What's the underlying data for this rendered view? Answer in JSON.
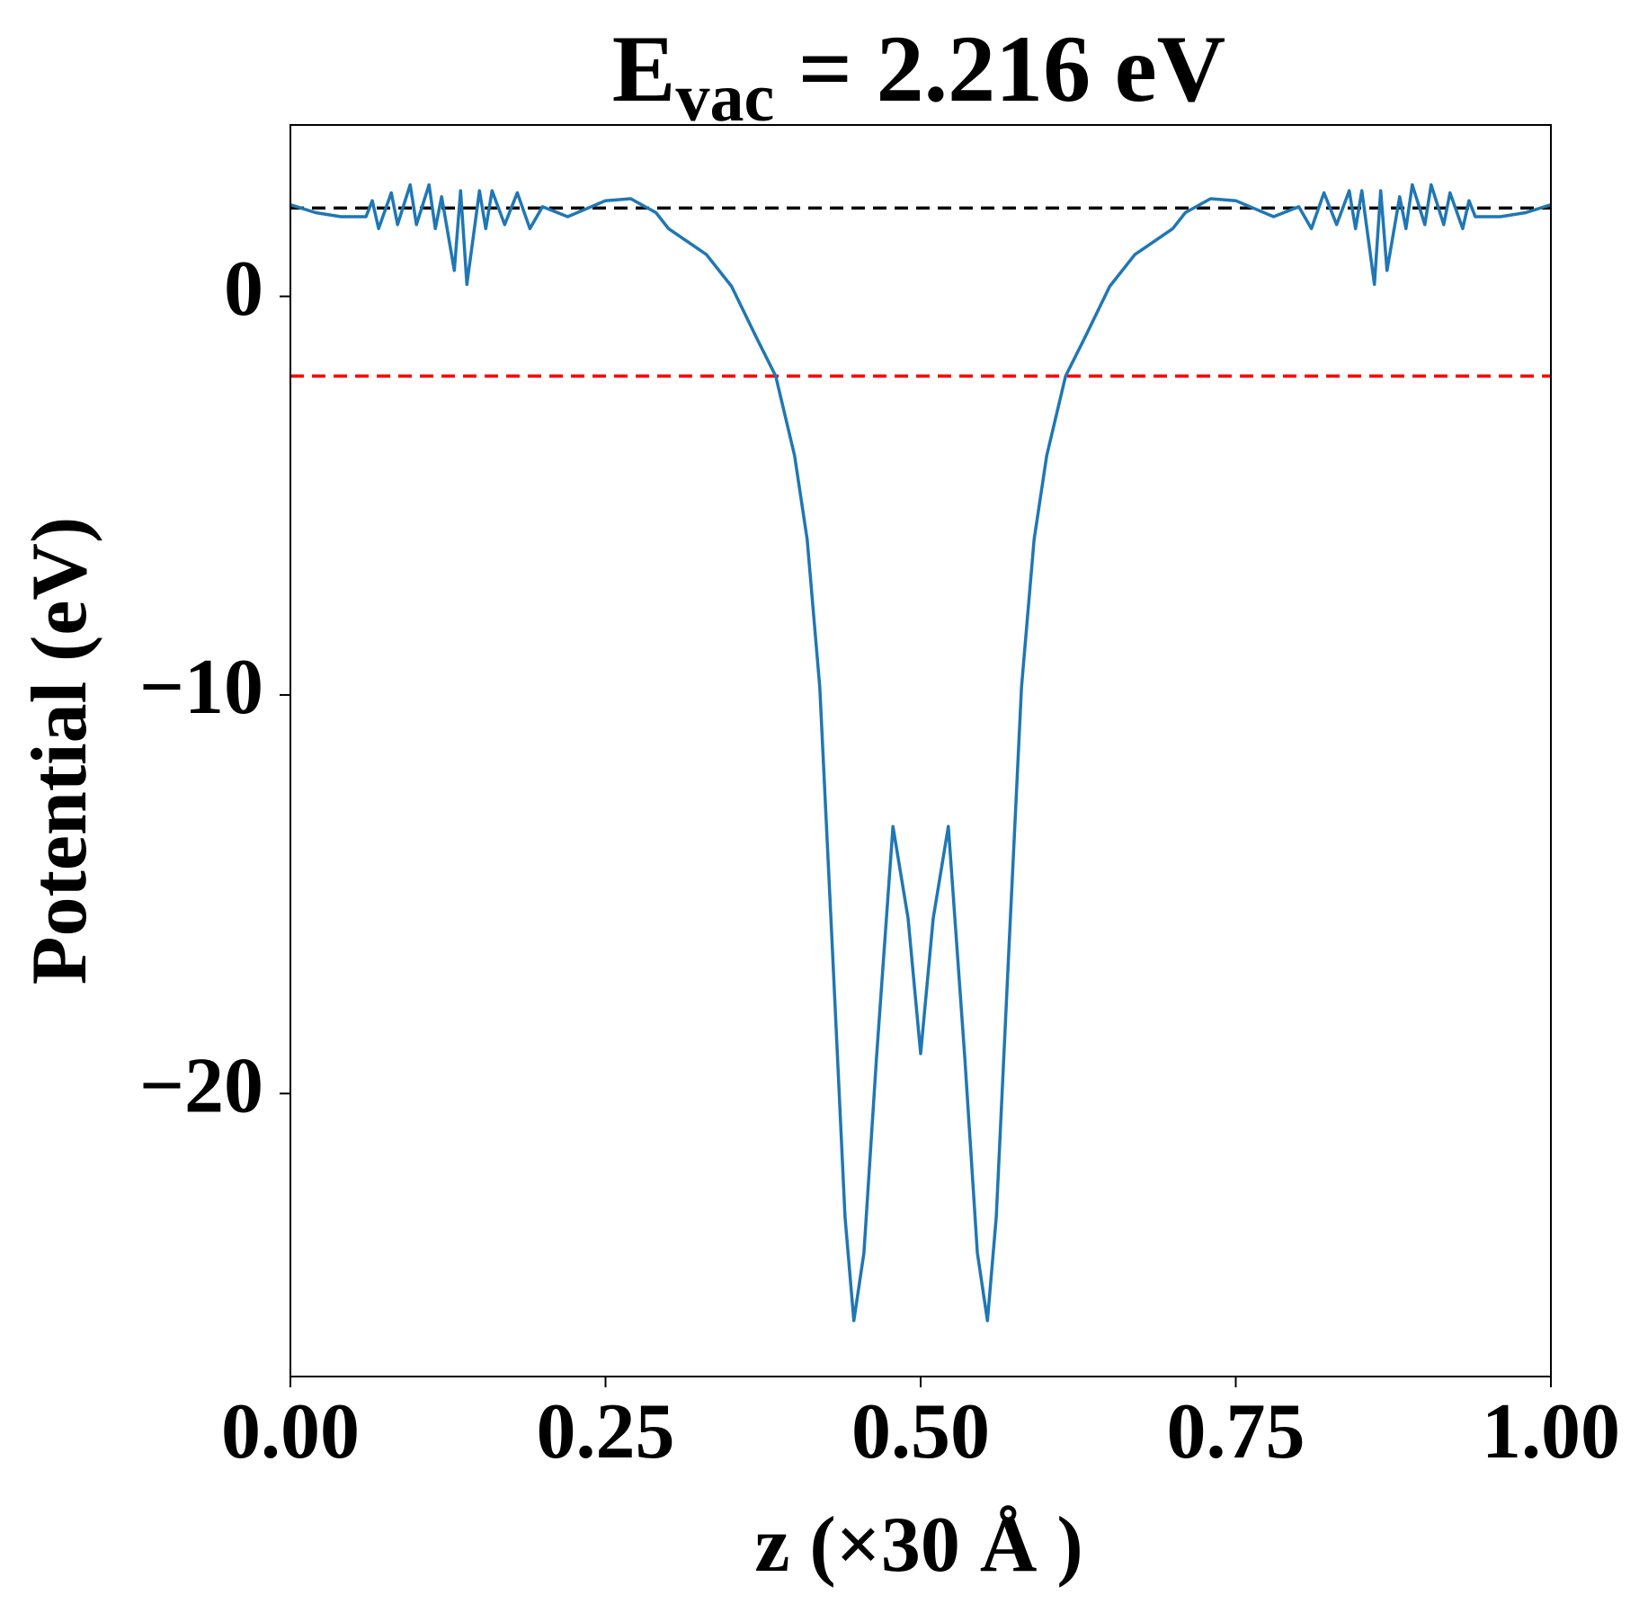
{
  "chart_data": {
    "type": "line",
    "title": {
      "main": "E",
      "sub": "vac",
      "rest": " = 2.216 eV"
    },
    "xlabel": "z (×30 Å )",
    "ylabel": "Potential (eV)",
    "x": [
      0,
      0.02,
      0.04,
      0.06,
      0.065,
      0.07,
      0.08,
      0.085,
      0.095,
      0.1,
      0.11,
      0.115,
      0.12,
      0.13,
      0.135,
      0.14,
      0.15,
      0.155,
      0.16,
      0.17,
      0.18,
      0.19,
      0.2,
      0.22,
      0.25,
      0.27,
      0.29,
      0.3,
      0.33,
      0.35,
      0.37,
      0.385,
      0.4,
      0.41,
      0.42,
      0.43,
      0.44,
      0.447,
      0.455,
      0.465,
      0.478,
      0.49,
      0.5,
      0.51,
      0.522,
      0.535,
      0.545,
      0.553,
      0.56,
      0.57,
      0.58,
      0.59,
      0.6,
      0.615,
      0.63,
      0.65,
      0.67,
      0.7,
      0.71,
      0.73,
      0.75,
      0.78,
      0.8,
      0.81,
      0.82,
      0.83,
      0.84,
      0.845,
      0.85,
      0.86,
      0.865,
      0.87,
      0.88,
      0.885,
      0.89,
      0.9,
      0.905,
      0.915,
      0.92,
      0.93,
      0.935,
      0.94,
      0.96,
      0.98,
      1.0
    ],
    "series": [
      {
        "color": "#1f77b4",
        "values": [
          2.3,
          2.1,
          2.0,
          2.0,
          2.4,
          1.7,
          2.6,
          1.8,
          2.8,
          1.8,
          2.8,
          1.7,
          2.5,
          0.65,
          2.65,
          0.3,
          2.65,
          1.7,
          2.65,
          1.8,
          2.6,
          1.7,
          2.25,
          2.0,
          2.4,
          2.45,
          2.1,
          1.7,
          1.05,
          0.25,
          -1.05,
          -2.0,
          -4.0,
          -6.1,
          -9.8,
          -16.4,
          -23.1,
          -25.7,
          -24.0,
          -19.1,
          -13.3,
          -15.6,
          -19.0,
          -15.6,
          -13.3,
          -19.1,
          -24.0,
          -25.7,
          -23.1,
          -16.4,
          -9.8,
          -6.1,
          -4.0,
          -2.0,
          -1.05,
          0.25,
          1.05,
          1.7,
          2.1,
          2.45,
          2.4,
          2.0,
          2.25,
          1.7,
          2.6,
          1.8,
          2.65,
          1.7,
          2.65,
          0.3,
          2.65,
          0.65,
          2.5,
          1.7,
          2.8,
          1.8,
          2.8,
          1.8,
          2.6,
          1.7,
          2.4,
          2.0,
          2.0,
          2.1,
          2.3
        ]
      }
    ],
    "hlines": [
      {
        "value": 2.216,
        "color": "#000000"
      },
      {
        "value": -2.0,
        "color": "#ff0000"
      }
    ],
    "xlim": [
      0,
      1
    ],
    "xticks": [
      {
        "value": 0,
        "label": "0.00"
      },
      {
        "value": 0.25,
        "label": "0.25"
      },
      {
        "value": 0.5,
        "label": "0.50"
      },
      {
        "value": 0.75,
        "label": "0.75"
      },
      {
        "value": 1,
        "label": "1.00"
      }
    ],
    "ylim": [
      -27.1,
      4.3
    ],
    "yticks": [
      {
        "value": -20,
        "label": "−20"
      },
      {
        "value": -10,
        "label": "−10"
      },
      0
    ]
  }
}
